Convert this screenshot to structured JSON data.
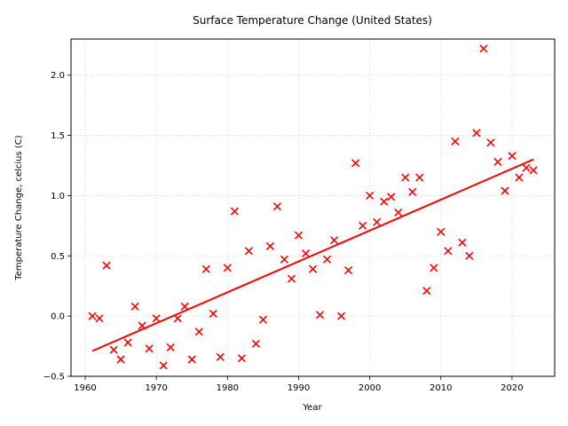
{
  "chart_data": {
    "type": "scatter",
    "title": "Surface Temperature Change (United States)",
    "xlabel": "Year",
    "ylabel": "Temperature Change, celcius (C)",
    "xlim": [
      1958,
      2026
    ],
    "ylim": [
      -0.5,
      2.3
    ],
    "x_ticks": [
      1960,
      1970,
      1980,
      1990,
      2000,
      2010,
      2020
    ],
    "y_ticks": [
      -0.5,
      0.0,
      0.5,
      1.0,
      1.5,
      2.0
    ],
    "x_tick_labels": [
      "1960",
      "1970",
      "1980",
      "1990",
      "2000",
      "2010",
      "2020"
    ],
    "y_tick_labels": [
      "−0.5",
      "0.0",
      "0.5",
      "1.0",
      "1.5",
      "2.0"
    ],
    "grid": true,
    "marker": "x",
    "color": "#ff0000",
    "trendline": {
      "x": [
        1961,
        2023
      ],
      "y": [
        -0.29,
        1.3
      ]
    },
    "x": [
      1961,
      1962,
      1963,
      1964,
      1965,
      1966,
      1967,
      1968,
      1969,
      1970,
      1971,
      1972,
      1973,
      1974,
      1975,
      1976,
      1977,
      1978,
      1979,
      1980,
      1981,
      1982,
      1983,
      1984,
      1985,
      1986,
      1987,
      1988,
      1989,
      1990,
      1991,
      1992,
      1993,
      1994,
      1995,
      1996,
      1997,
      1998,
      1999,
      2000,
      2001,
      2002,
      2003,
      2004,
      2005,
      2006,
      2007,
      2008,
      2009,
      2010,
      2011,
      2012,
      2013,
      2014,
      2015,
      2016,
      2017,
      2018,
      2019,
      2020,
      2021,
      2022,
      2023
    ],
    "y": [
      0.0,
      -0.02,
      0.42,
      -0.28,
      -0.36,
      -0.22,
      0.08,
      -0.08,
      -0.27,
      -0.02,
      -0.41,
      -0.26,
      -0.02,
      0.08,
      -0.36,
      -0.13,
      0.39,
      0.02,
      -0.34,
      0.4,
      0.87,
      -0.35,
      0.54,
      -0.23,
      -0.03,
      0.58,
      0.91,
      0.47,
      0.31,
      0.67,
      0.52,
      0.39,
      0.01,
      0.47,
      0.63,
      0.0,
      0.38,
      1.27,
      0.75,
      1.0,
      0.78,
      0.95,
      0.99,
      0.86,
      1.15,
      1.03,
      1.15,
      0.21,
      0.4,
      0.7,
      0.54,
      1.45,
      0.61,
      0.5,
      1.52,
      2.22,
      1.44,
      1.28,
      1.04,
      1.33,
      1.15,
      1.23,
      1.21
    ]
  }
}
